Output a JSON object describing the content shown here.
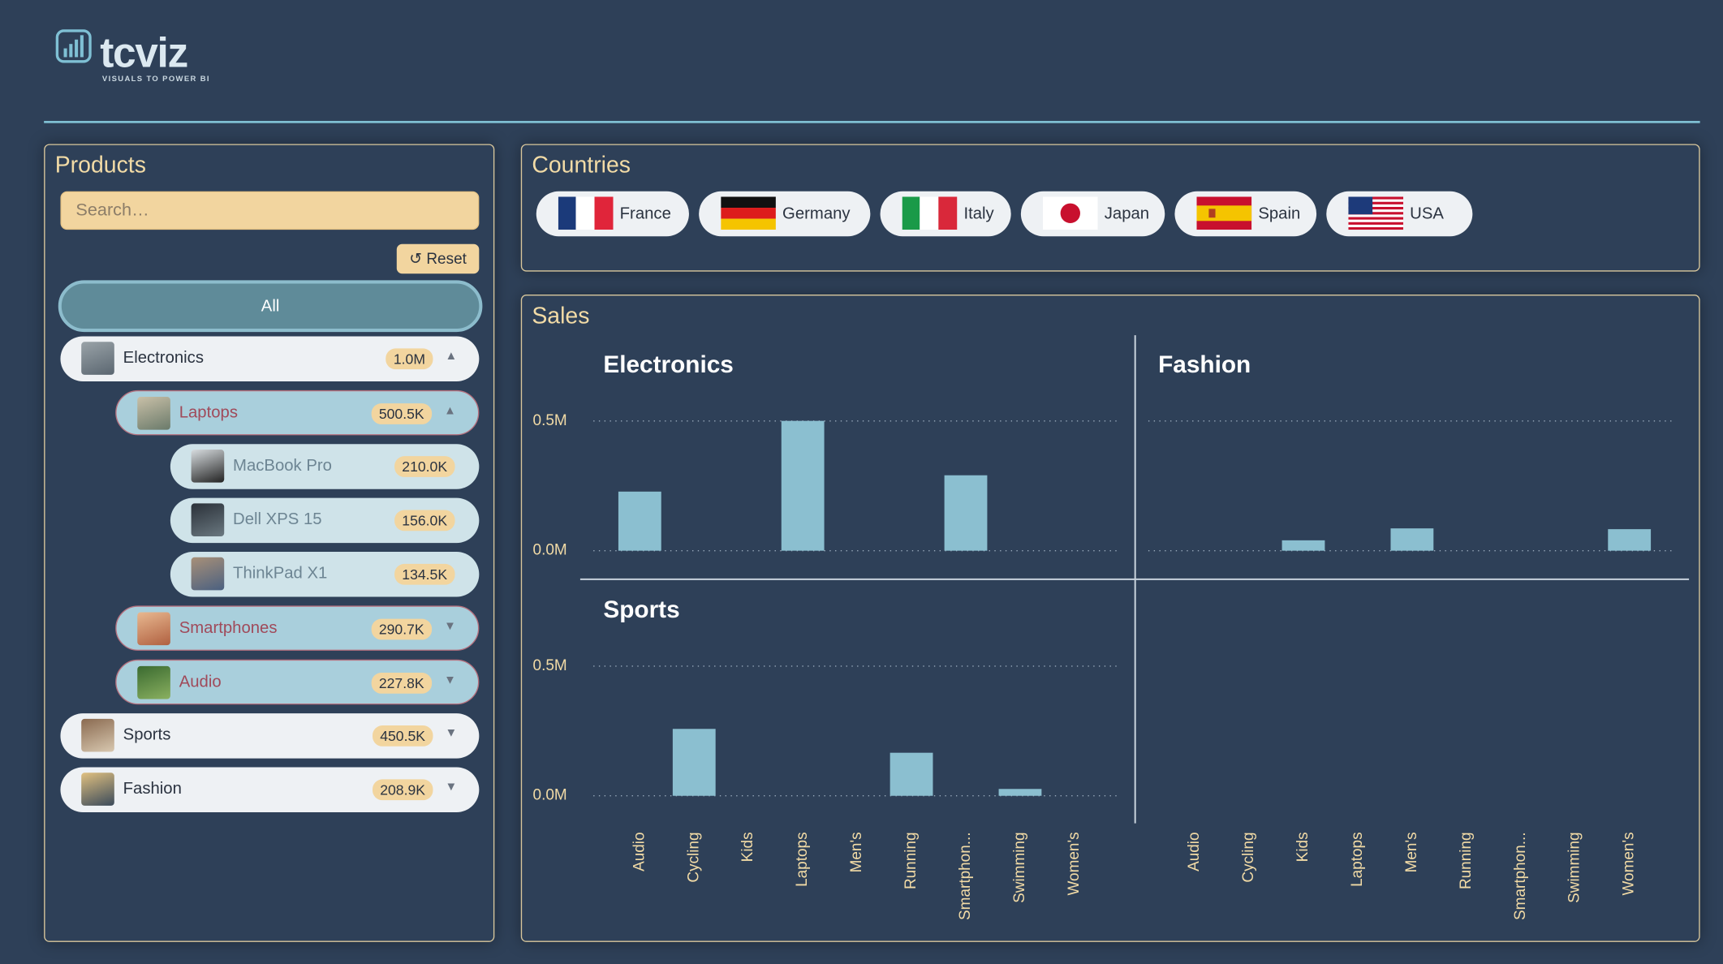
{
  "header": {
    "logo": "tcviz",
    "tagline": "VISUALS TO POWER BI"
  },
  "products": {
    "title": "Products",
    "search_placeholder": "Search…",
    "reset": "↺ Reset",
    "all": "All",
    "items": [
      {
        "name": "Electronics",
        "value": "1.0M",
        "level": 0,
        "expanded": true
      },
      {
        "name": "Laptops",
        "value": "500.5K",
        "level": 1,
        "expanded": true
      },
      {
        "name": "MacBook Pro",
        "value": "210.0K",
        "level": 2
      },
      {
        "name": "Dell XPS 15",
        "value": "156.0K",
        "level": 2
      },
      {
        "name": "ThinkPad X1",
        "value": "134.5K",
        "level": 2
      },
      {
        "name": "Smartphones",
        "value": "290.7K",
        "level": 1,
        "expanded": false
      },
      {
        "name": "Audio",
        "value": "227.8K",
        "level": 1,
        "expanded": false
      },
      {
        "name": "Sports",
        "value": "450.5K",
        "level": 0,
        "expanded": false
      },
      {
        "name": "Fashion",
        "value": "208.9K",
        "level": 0,
        "expanded": false
      }
    ]
  },
  "countries": {
    "title": "Countries",
    "items": [
      "France",
      "Germany",
      "Italy",
      "Japan",
      "Spain",
      "USA"
    ]
  },
  "chart_data": {
    "type": "bar",
    "title": "Sales",
    "color": "#8bbfd0",
    "grid": true,
    "categories": [
      "Audio",
      "Cycling",
      "Kids",
      "Laptops",
      "Men's",
      "Running",
      "Smartphon...",
      "Swimming",
      "Women's"
    ],
    "ylim": [
      0,
      500000
    ],
    "yticks": [
      {
        "value": 0,
        "label": "0.0M"
      },
      {
        "value": 500000,
        "label": "0.5M"
      }
    ],
    "panels": [
      {
        "title": "Electronics",
        "values": [
          227800,
          null,
          null,
          500500,
          null,
          null,
          290700,
          null,
          null
        ]
      },
      {
        "title": "Fashion",
        "values": [
          null,
          null,
          40000,
          null,
          86000,
          null,
          null,
          null,
          83000
        ]
      },
      {
        "title": "Sports",
        "values": [
          null,
          258000,
          null,
          null,
          null,
          166000,
          null,
          26500,
          null
        ]
      }
    ]
  }
}
